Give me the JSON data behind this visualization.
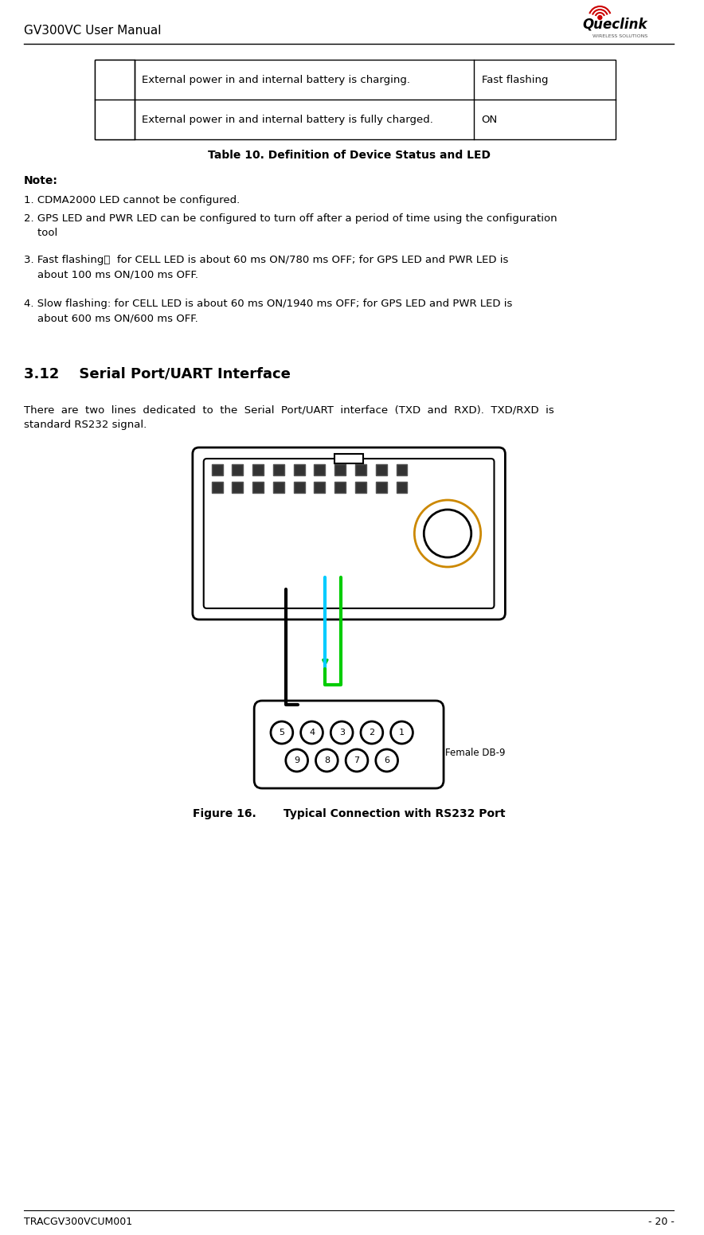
{
  "header_left": "GV300VC User Manual",
  "footer_left": "TRACGV300VCUM001",
  "footer_right": "- 20 -",
  "logo_text": "Queclink",
  "table_rows": [
    {
      "col1": "External power in and internal battery is charging.",
      "col2": "Fast flashing"
    },
    {
      "col1": "External power in and internal battery is fully charged.",
      "col2": "ON"
    }
  ],
  "table_caption": "Table 10. Definition of Device Status and LED",
  "note_label": "Note:",
  "notes": [
    "1. CDMA2000 LED cannot be configured.",
    "2. GPS LED and PWR LED can be configured to turn off after a period of time using the configuration\n    tool",
    "3. Fast flashing：  for CELL LED is about 60 ms ON/780 ms OFF; for GPS LED and PWR LED is\n    about 100 ms ON/100 ms OFF.",
    "4. Slow flashing: for CELL LED is about 60 ms ON/1940 ms OFF; for GPS LED and PWR LED is\n    about 600 ms ON/600 ms OFF."
  ],
  "section_heading": "3.12    Serial Port/UART Interface",
  "body_text": "There  are  two  lines  dedicated  to  the  Serial  Port/UART  interface  (TXD  and  RXD).  TXD/RXD  is\nstandard RS232 signal.",
  "figure_caption": "Figure 16.       Typical Connection with RS232 Port",
  "bg_color": "#ffffff",
  "text_color": "#000000",
  "table_border_color": "#000000",
  "header_line_color": "#000000"
}
